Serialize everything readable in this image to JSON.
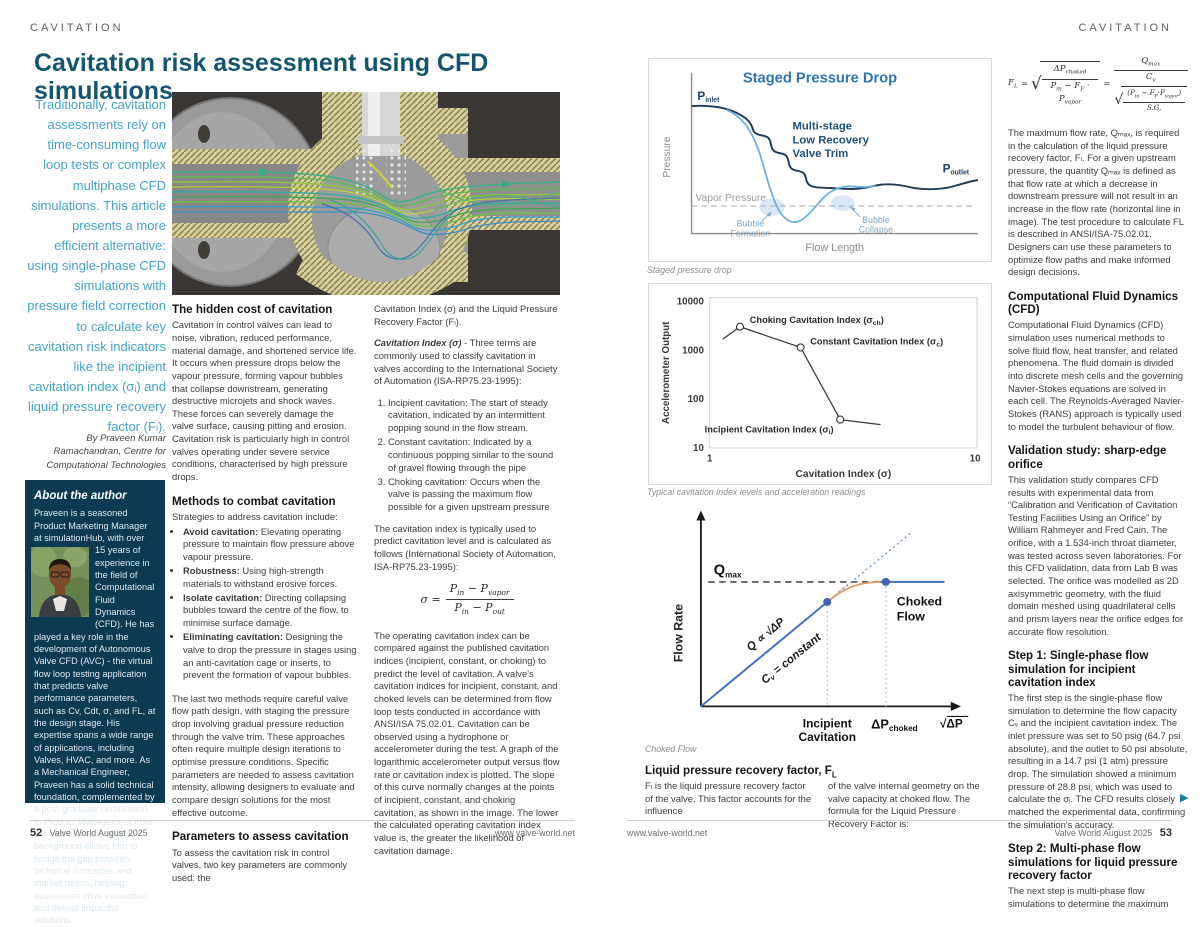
{
  "meta": {
    "section": "CAVITATION",
    "magazine": "Valve World August 2025",
    "website": "www.valve-world.net",
    "left_page_number": "52",
    "right_page_number": "53"
  },
  "page52": {
    "title": "Cavitation risk assessment using CFD simulations",
    "intro": "Traditionally, cavitation assessments rely on time-consuming flow loop tests or complex multiphase CFD simulations. This article presents a more efficient alternative: using single-phase CFD simulations with pressure field correction to calculate key cavitation risk indicators like the incipient cavitation index (σᵢ) and liquid pressure recovery factor (Fₗ).",
    "byline": "By Praveen Kumar Ramachandran, Centre for Computational Technologies",
    "about": {
      "title": "About the author",
      "body1": "Praveen is a seasoned Product Marketing Manager at simulationHub, with over 15 years ",
      "body2": "of experience in the field of Computational Fluid Dynamics (CFD). He has played a key role in the development of Autonomous Valve CFD (AVC) - the virtual flow loop testing application that predicts valve performance parameters, such as Cv, Cdt, σ, and FL, at the design stage. His expertise spans a wide range of applications, including Valves, HVAC, and more. As a Mechanical Engineer, Praveen has a solid technical foundation, complemented by a post-graduate certification in Product Management from IIM Indore. His extensive background allows him to bridge the gap between technical intricacies and market needs, helping businesses drive innovation and deliver impactful solutions."
    },
    "hero_description": "CFD simulation streamlines flowing through a sectioned control valve",
    "col1": {
      "h1": "The hidden cost of cavitation",
      "p1": "Cavitation in control valves can lead to noise, vibration, reduced performance, material damage, and shortened service life. It occurs when pressure drops below the vapour pressure, forming vapour bubbles that collapse downstream, generating destructive microjets and shock waves. These forces can severely damage the valve surface, causing pitting and erosion. Cavitation risk is particularly high in control valves operating under severe service conditions, characterised by high pressure drops.",
      "h2": "Methods to combat cavitation",
      "p2": "Strategies to address cavitation include:",
      "bullets": [
        {
          "b": "Avoid cavitation:",
          "t": " Elevating operating pressure to maintain flow pressure above vapour pressure."
        },
        {
          "b": "Robustness:",
          "t": " Using high-strength materials to withstand erosive forces."
        },
        {
          "b": "Isolate cavitation:",
          "t": " Directing collapsing bubbles toward the centre of the flow, to minimise surface damage."
        },
        {
          "b": "Eliminating cavitation:",
          "t": " Designing the valve to drop the pressure in stages using an anti-cavitation cage or inserts, to prevent the formation of vapour bubbles."
        }
      ],
      "p3": "The last two methods require careful valve flow path design, with staging the pressure drop involving gradual pressure reduction through the valve trim. These approaches often require multiple design iterations to optimise pressure conditions. Specific parameters are needed to assess cavitation intensity, allowing designers to evaluate and compare design solutions for the most effective outcome.",
      "h3": "Parameters to assess cavitation",
      "p4": "To assess the cavitation risk in control valves, two key parameters are commonly used: the"
    },
    "col2": {
      "p1": "Cavitation Index (σ) and the Liquid Pressure Recovery Factor (Fₗ).",
      "lead_b": "Cavitation Index (σ)",
      "lead_t": " - Three terms are commonly used to classify cavitation in valves according to the International Society of Automation (ISA-RP75.23-1995):",
      "items": [
        "Incipient cavitation: The start of steady cavitation, indicated by an intermittent popping sound in the flow stream.",
        "Constant cavitation: Indicated by a continuous popping similar to the sound of gravel flowing through the pipe",
        "Choking cavitation: Occurs when the valve is passing the maximum flow possible for a given upstream pressure"
      ],
      "p2": "The cavitation index is typically used to predict cavitation level and is calculated as follows (International Society of Automation, ISA-RP75.23-1995):",
      "p3": "The operating cavitation index can be compared against the published cavitation indices (incipient, constant, or choking) to predict the level of cavitation. A valve's cavitation indices for incipient, constant, and choked levels can be determined from flow loop tests conducted in accordance with ANSI/ISA 75.02.01. Cavitation can be observed using a hydrophone or accelerometer during the test. A graph of the logarithmic accelerometer output versus flow rate or cavitation index is plotted. The slope of this curve normally changes at the points of incipient, constant, and choking cavitation, as shown in the image. The lower the calculated operating cavitation index value is, the greater the likelihood of cavitation damage."
    }
  },
  "formulas": {
    "sigma": {
      "lhs": "σ =",
      "na": "P",
      "nas": "in",
      "nb": " − P",
      "nbs": "vapor",
      "da": "P",
      "das": "in",
      "db": " − P",
      "dbs": "out"
    },
    "fl": {
      "lhs": "F",
      "lhs_sub": "L",
      "eq": "=",
      "rad": "√",
      "n1a": "ΔP",
      "n1s": "choked",
      "d1a": "P",
      "d1as": "in",
      "d1b": " − F",
      "d1bs": "F",
      "d1c": " · P",
      "d1cs": "vapor",
      "eq2": "=",
      "n2a": "Q",
      "n2s": "max",
      "d2a": "C",
      "d2as": "v",
      "rad2": "√",
      "in_na": "(P",
      "in_nas": "in",
      "in_nb": " − F",
      "in_nbs": "F",
      "in_nc": "·P",
      "in_ncs": "vapor",
      "in_nd": ")",
      "in_d": "S.G."
    }
  },
  "figures": {
    "staged": {
      "title": "Staged Pressure Drop",
      "p_inlet_main": "P",
      "p_inlet_sub": "inlet",
      "p_outlet_main": "P",
      "p_outlet_sub": "outlet",
      "trim1": "Multi-stage",
      "trim2": "Low Recovery",
      "trim3": "Valve Trim",
      "vapor": "Vapor Pressure",
      "bf1": "Bubble",
      "bf2": "Formation",
      "bc1": "Bubble",
      "bc2": "Collapse",
      "ylabel": "Pressure",
      "xlabel": "Flow Length",
      "caption": "Staged pressure drop"
    },
    "accel": {
      "ylabel": "Accelerometer Output",
      "xlabel": "Cavitation Index (σ)",
      "yticks": [
        "10000",
        "1000",
        "100",
        "10"
      ],
      "xticks": [
        "1",
        "10"
      ],
      "choking_a": "Choking Cavitation Index (σ",
      "choking_sub": "ch",
      "constant_a": "Constant Cavitation Index (σ",
      "constant_sub": "c",
      "incipient_a": "Incipient Cavitation Index (σ",
      "incipient_sub": "i",
      "close": ")",
      "caption": "Typical cavitation index levels and acceleration readings"
    },
    "choked": {
      "q_main": "Q",
      "q_sub": "max",
      "prop": "Q ∝ √ΔP",
      "cv_main": "C",
      "cv_sub": "v",
      "cv_rest": " = constant",
      "choked1": "Choked",
      "choked2": "Flow",
      "inc1": "Incipient",
      "inc2": "Cavitation",
      "dp_main": "ΔP",
      "dp_sub": "choked",
      "xaxis": "√ΔP",
      "ylabel": "Flow Rate",
      "caption": "Choked Flow"
    }
  },
  "chart_data": [
    {
      "id": "staged-pressure-drop",
      "type": "line",
      "conceptual": true,
      "title": "Staged Pressure Drop",
      "xlabel": "Flow Length",
      "ylabel": "Pressure",
      "series": [
        {
          "name": "Multi-stage Low Recovery Valve Trim",
          "shape": "stepped pressure drop staying above vapor pressure"
        },
        {
          "name": "Single-stage high recovery",
          "shape": "smooth dip below vapor pressure then recovery"
        }
      ],
      "annotations": [
        "P inlet",
        "P outlet",
        "Vapor Pressure",
        "Bubble Formation",
        "Bubble Collapse"
      ]
    },
    {
      "id": "cavitation-index",
      "type": "line",
      "log_x": true,
      "log_y": true,
      "xlabel": "Cavitation Index (σ)",
      "ylabel": "Accelerometer Output",
      "xlim": [
        1,
        10
      ],
      "ylim": [
        10,
        10000
      ],
      "points": [
        [
          1.12,
          1700
        ],
        [
          1.3,
          3050
        ],
        [
          2.2,
          1150
        ],
        [
          3.1,
          38
        ],
        [
          4.4,
          30
        ]
      ],
      "marker_indices": [
        1,
        2,
        3
      ],
      "point_labels": [
        "",
        "Choking Cavitation Index (σch)",
        "Constant Cavitation Index (σc)",
        "Incipient Cavitation Index (σi)",
        ""
      ]
    },
    {
      "id": "choked-flow",
      "type": "line",
      "conceptual": true,
      "xlabel": "√ΔP",
      "ylabel": "Flow Rate",
      "annotations": [
        "Q max",
        "Q ∝ √ΔP",
        "Cv = constant",
        "Choked Flow",
        "Incipient Cavitation",
        "ΔP choked"
      ]
    }
  ],
  "page53": {
    "bottom": {
      "head_main": "Liquid pressure recovery factor, F",
      "head_sub": "L",
      "colA": "Fₗ is the liquid pressure recovery factor of the valve. This factor accounts for the influence",
      "colB": "of the valve internal geometry on the valve capacity at choked flow. The formula for the Liquid Pressure Recovery Factor is:"
    },
    "rightcol": {
      "p_qmax": "The maximum flow rate, Qₘₐₓ, is required in the calculation of the liquid pressure recovery factor, Fₗ. For a given upstream pressure, the quantity Qₘₐₓ is defined as that flow rate at which a decrease in downstream pressure will not result in an increase in the flow rate (horizontal line in image). The test procedure to calculate FL is described in ANSI/ISA-75.02.01.  Designers can use these parameters to optimize flow paths and make informed design decisions.",
      "h_cfd": "Computational Fluid Dynamics (CFD)",
      "p_cfd": "Computational Fluid Dynamics (CFD) simulation uses numerical methods to solve fluid flow, heat transfer, and related phenomena. The fluid domain is divided into discrete mesh cells and the governing Navier-Stokes equations are solved in each cell. The Reynolds-Averaged Navier-Stokes (RANS) approach is typically used to model the turbulent behaviour of flow.",
      "h_val": "Validation study: sharp-edge orifice",
      "p_val": "This validation study compares CFD results with experimental data from “Calibration and Verification of Cavitation Testing Facilities Using an Orifice” by William Rahmeyer and Fred Cain. The orifice, with a 1.534-inch throat diameter, was tested across seven laboratories. For this CFD validation, data from Lab B was selected. The orifice was modelled as 2D axisymmetric geometry, with the fluid domain meshed using quadrilateral cells and prism layers near the orifice edges for accurate flow resolution.",
      "h_s1": "Step 1: Single-phase flow simulation for incipient cavitation index",
      "p_s1": "The first step is the single-phase flow simulation to determine the flow capacity Cᵥ and the incipient cavitation index. The inlet pressure was set to 50 psig (64.7 psi absolute), and the outlet to 50 psi absolute, resulting in a 14.7 psi (1 atm) pressure drop. The simulation showed a minimum pressure of 28.8 psi, which was used to calculate the σᵢ. The CFD results closely matched the experimental data, confirming the simulation's accuracy.",
      "h_s2": "Step 2: Multi-phase flow simulations for liquid pressure recovery factor",
      "p_s2": "The next step is multi-phase flow simulations to determine the maximum",
      "cont": "▶"
    }
  }
}
